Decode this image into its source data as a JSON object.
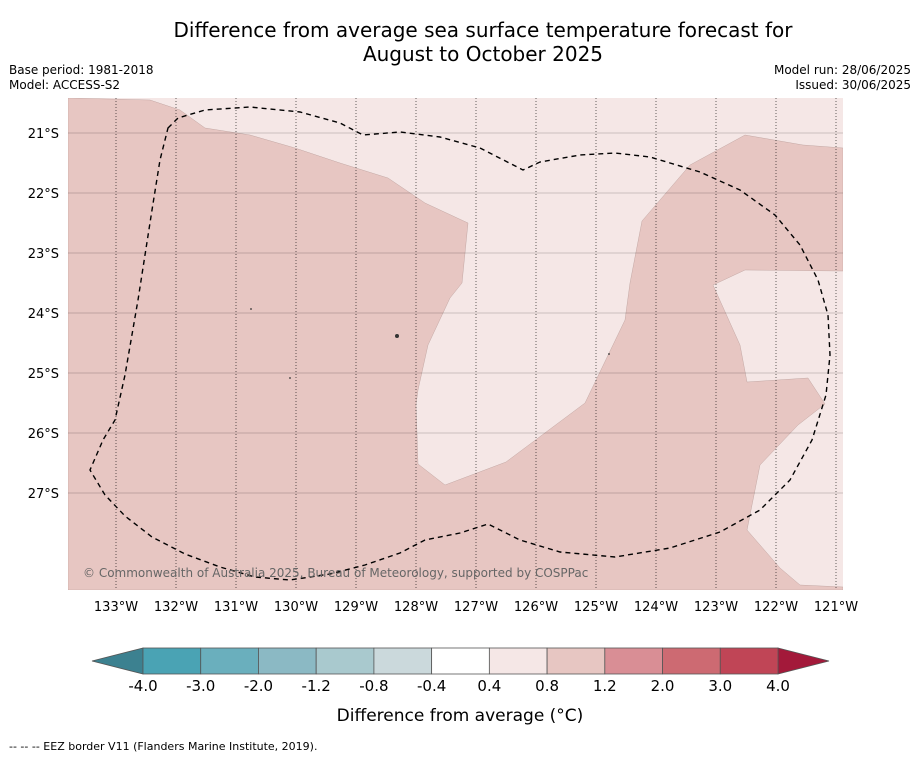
{
  "title": {
    "line1": "Difference from average sea surface temperature forecast for",
    "line2": "August to October 2025"
  },
  "meta": {
    "base_period": "Base period: 1981-2018",
    "model": "Model: ACCESS-S2",
    "model_run": "Model run: 28/06/2025",
    "issued": "Issued: 30/06/2025"
  },
  "map": {
    "lat_labels": [
      "21°S",
      "22°S",
      "23°S",
      "24°S",
      "25°S",
      "26°S",
      "27°S"
    ],
    "lon_labels": [
      "133°W",
      "132°W",
      "131°W",
      "130°W",
      "129°W",
      "128°W",
      "127°W",
      "126°W",
      "125°W",
      "124°W",
      "123°W",
      "122°W",
      "121°W"
    ],
    "copyright": "© Commonwealth of Australia 2025, Bureau of Meteorology, supported by COSPPac",
    "colors": {
      "class_04_08": "#f5e7e6",
      "class_08_12": "#e7c6c2",
      "gridline": "#000000",
      "eez_border": "#000000"
    }
  },
  "colorbar": {
    "ticks": [
      "-4.0",
      "-3.0",
      "-2.0",
      "-1.2",
      "-0.8",
      "-0.4",
      "0.4",
      "0.8",
      "1.2",
      "2.0",
      "3.0",
      "4.0"
    ],
    "colors": [
      "#4aa3b4",
      "#6aafbd",
      "#8bb9c4",
      "#a9c9ce",
      "#cbd9dc",
      "#ffffff",
      "#f5e7e6",
      "#e7c6c2",
      "#d98e95",
      "#cd6a72",
      "#c04556"
    ],
    "under_color": "#3c8190",
    "over_color": "#a3193a",
    "label": "Difference from average (°C)"
  },
  "footnote": "--  --  -- EEZ border V11 (Flanders Marine Institute, 2019)."
}
